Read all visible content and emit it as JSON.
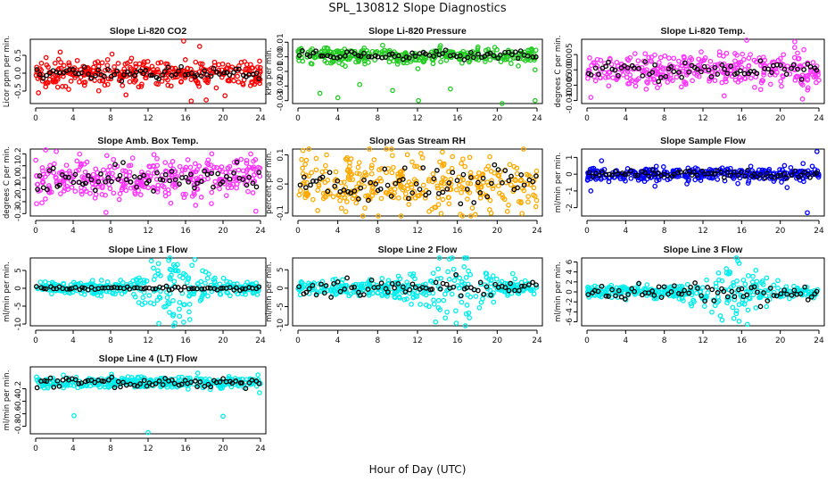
{
  "figure": {
    "title": "SPL_130812  Slope Diagnostics",
    "xlabel": "Hour of Day (UTC)"
  },
  "chart_data": [
    {
      "type": "scatter",
      "title": "Slope Li-820 CO2",
      "ylabel": "Licor ppm per min.",
      "xlim": [
        0,
        24
      ],
      "ylim": [
        -0.85,
        0.95
      ],
      "x_ticks": [
        0,
        4,
        8,
        12,
        16,
        20,
        24
      ],
      "y_ticks": [
        -0.5,
        0,
        0.5
      ],
      "y_tick_labels": [
        "-0.5",
        "0.0",
        "0.5"
      ],
      "color": "#ff0000",
      "center": 0.0,
      "spread": 0.18,
      "black_spread": 0.08,
      "outliers": [
        {
          "x": 15.8,
          "y": 0.9
        },
        {
          "x": 16.6,
          "y": -0.78
        },
        {
          "x": 18.2,
          "y": -0.75
        },
        {
          "x": 17.5,
          "y": 0.75
        },
        {
          "x": 0.3,
          "y": -0.55
        }
      ]
    },
    {
      "type": "scatter",
      "title": "Slope Li-820 Pressure",
      "ylabel": "kPa per min.",
      "xlim": [
        0,
        24
      ],
      "ylim": [
        -0.032,
        0.012
      ],
      "x_ticks": [
        0,
        4,
        8,
        12,
        16,
        20,
        24
      ],
      "y_ticks": [
        -0.03,
        -0.02,
        -0.01,
        0,
        0.01
      ],
      "y_tick_labels": [
        "-0.03",
        "-0.02",
        "-0.01",
        "0.00",
        "0.01"
      ],
      "color": "#22cc22",
      "center": 0.001,
      "spread": 0.0028,
      "black_spread": 0.0015,
      "outliers": [
        {
          "x": 4.0,
          "y": -0.028
        },
        {
          "x": 12.1,
          "y": -0.03
        },
        {
          "x": 9.5,
          "y": -0.023
        },
        {
          "x": 20.5,
          "y": -0.032
        },
        {
          "x": 2.2,
          "y": -0.025
        },
        {
          "x": 6.2,
          "y": -0.019
        },
        {
          "x": 15.3,
          "y": -0.022
        },
        {
          "x": 23.8,
          "y": -0.03
        }
      ]
    },
    {
      "type": "scatter",
      "title": "Slope Li-820 Temp.",
      "ylabel": "degrees C per min.",
      "xlim": [
        0,
        24
      ],
      "ylim": [
        -0.011,
        0.01
      ],
      "x_ticks": [
        0,
        4,
        8,
        12,
        16,
        20,
        24
      ],
      "y_ticks": [
        -0.01,
        -0.005,
        0,
        0.005
      ],
      "y_tick_labels": [
        "-0.010",
        "-0.005",
        "0.000",
        "0.005"
      ],
      "color": "#ff33ff",
      "center": 0.0,
      "spread": 0.0028,
      "black_spread": 0.0014,
      "outliers": [
        {
          "x": 22.3,
          "y": -0.0095
        },
        {
          "x": 21.5,
          "y": 0.0092
        },
        {
          "x": 14.2,
          "y": -0.0085
        },
        {
          "x": 0.4,
          "y": -0.009
        }
      ]
    },
    {
      "type": "scatter",
      "title": "Slope Amb. Box Temp.",
      "ylabel": "degrees C per min.",
      "xlim": [
        0,
        24
      ],
      "ylim": [
        -0.32,
        0.24
      ],
      "x_ticks": [
        0,
        4,
        8,
        12,
        16,
        20,
        24
      ],
      "y_ticks": [
        -0.3,
        -0.2,
        -0.1,
        0,
        0.1,
        0.2
      ],
      "y_tick_labels": [
        "-0.3",
        "-0.2",
        "-0.1",
        "0.0",
        "0.1",
        "0.2"
      ],
      "color": "#ff33ff",
      "center": 0.0,
      "spread": 0.09,
      "black_spread": 0.06,
      "outliers": [
        {
          "x": 2.2,
          "y": 0.22
        },
        {
          "x": 7.5,
          "y": -0.29
        },
        {
          "x": 23.5,
          "y": -0.28
        },
        {
          "x": 18.8,
          "y": 0.2
        }
      ]
    },
    {
      "type": "scatter",
      "title": "Slope Gas Stream RH",
      "ylabel": "percent per min.",
      "xlim": [
        0,
        24
      ],
      "ylim": [
        -0.11,
        0.12
      ],
      "x_ticks": [
        0,
        4,
        8,
        12,
        16,
        20,
        24
      ],
      "y_ticks": [
        -0.1,
        0,
        0.1
      ],
      "y_tick_labels": [
        "-0.1",
        "0.0",
        "0.1"
      ],
      "color": "#ffaa00",
      "center": 0.0,
      "spread": 0.045,
      "black_spread": 0.03,
      "outliers": [
        {
          "x": 0.5,
          "y": 0.115
        },
        {
          "x": 17.8,
          "y": -0.105
        },
        {
          "x": 4.8,
          "y": -0.095
        },
        {
          "x": 14.5,
          "y": 0.11
        }
      ]
    },
    {
      "type": "scatter",
      "title": "Slope Sample Flow",
      "ylabel": "ml/min per min.",
      "xlim": [
        0,
        24
      ],
      "ylim": [
        -2.5,
        1.5
      ],
      "x_ticks": [
        0,
        4,
        8,
        12,
        16,
        20,
        24
      ],
      "y_ticks": [
        -2,
        -1,
        0,
        1
      ],
      "y_tick_labels": [
        "-2",
        "-1",
        "0",
        "1"
      ],
      "color": "#0000ff",
      "center": 0.0,
      "spread": 0.2,
      "black_spread": 0.12,
      "outliers": [
        {
          "x": 22.8,
          "y": -2.3
        },
        {
          "x": 23.8,
          "y": 1.35
        },
        {
          "x": 0.4,
          "y": -1.0
        },
        {
          "x": 1.5,
          "y": 0.8
        },
        {
          "x": 20.7,
          "y": -0.8
        }
      ]
    },
    {
      "type": "scatter",
      "title": "Slope Line 1 Flow",
      "ylabel": "ml/min per min.",
      "xlim": [
        0,
        24
      ],
      "ylim": [
        -10.5,
        8.5
      ],
      "x_ticks": [
        0,
        4,
        8,
        12,
        16,
        20,
        24
      ],
      "y_ticks": [
        -10,
        -5,
        0,
        5
      ],
      "y_tick_labels": [
        "-10",
        "-5",
        "0",
        "5"
      ],
      "color": "#00eeee",
      "center": 0.0,
      "spread": 0.9,
      "black_spread": 0.25,
      "burst": {
        "x": 15,
        "width": 3.5,
        "spread": 4.5
      },
      "outliers": [
        {
          "x": 15.8,
          "y": -9.5
        },
        {
          "x": 14.2,
          "y": 7.8
        }
      ]
    },
    {
      "type": "scatter",
      "title": "Slope Line 2 Flow",
      "ylabel": "ml/min per min.",
      "xlim": [
        0,
        24
      ],
      "ylim": [
        -10.2,
        8.2
      ],
      "x_ticks": [
        0,
        4,
        8,
        12,
        16,
        20,
        24
      ],
      "y_ticks": [
        -10,
        -5,
        0,
        5
      ],
      "y_tick_labels": [
        "-10",
        "-5",
        "0",
        "5"
      ],
      "color": "#00eeee",
      "center": 0.0,
      "spread": 1.1,
      "black_spread": 1.2,
      "burst": {
        "x": 15.5,
        "width": 3.5,
        "spread": 4.0
      },
      "outliers": [
        {
          "x": 15.9,
          "y": -9.5
        },
        {
          "x": 15.2,
          "y": 7.9
        }
      ]
    },
    {
      "type": "scatter",
      "title": "Slope Line 3 Flow",
      "ylabel": "ml/min per min.",
      "xlim": [
        0,
        24
      ],
      "ylim": [
        -6.8,
        6.8
      ],
      "x_ticks": [
        0,
        4,
        8,
        12,
        16,
        20,
        24
      ],
      "y_ticks": [
        -6,
        -4,
        -2,
        0,
        2,
        4,
        6
      ],
      "y_tick_labels": [
        "-6",
        "-4",
        "-2",
        "0",
        "2",
        "4",
        "6"
      ],
      "color": "#00eeee",
      "center": 0.0,
      "spread": 0.55,
      "black_spread": 0.9,
      "burst": {
        "x": 15,
        "width": 3.5,
        "spread": 2.5
      },
      "outliers": [
        {
          "x": 15.6,
          "y": 6.2
        },
        {
          "x": 16.6,
          "y": -6.5
        },
        {
          "x": 13.8,
          "y": -4.8
        }
      ]
    },
    {
      "type": "scatter",
      "title": "Slope Line 4 (LT) Flow",
      "ylabel": "ml/min per min.",
      "xlim": [
        0,
        24
      ],
      "ylim": [
        -0.92,
        0.15
      ],
      "x_ticks": [
        0,
        4,
        8,
        12,
        16,
        20,
        24
      ],
      "y_ticks": [
        -0.8,
        -0.6,
        -0.4,
        -0.2
      ],
      "y_tick_labels": [
        "-0.8",
        "-0.6",
        "-0.4",
        "-0.2"
      ],
      "color": "#00eeee",
      "center": -0.1,
      "spread": 0.045,
      "black_spread": 0.035,
      "outliers": [
        {
          "x": 4.1,
          "y": -0.63
        },
        {
          "x": 12.0,
          "y": -0.9
        },
        {
          "x": 20.0,
          "y": -0.64
        },
        {
          "x": 17.3,
          "y": 0.05
        }
      ]
    }
  ]
}
